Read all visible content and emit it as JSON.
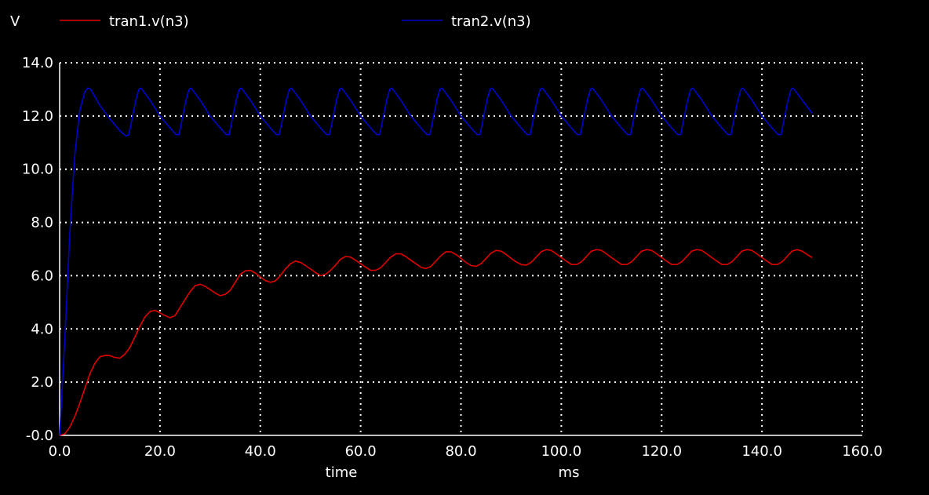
{
  "chart_data": {
    "type": "line",
    "ylabel": "V",
    "xlabel": "time",
    "xunit": "ms",
    "xlim": [
      0,
      160
    ],
    "ylim": [
      0,
      14
    ],
    "xticks": [
      "0.0",
      "20.0",
      "40.0",
      "60.0",
      "80.0",
      "100.0",
      "120.0",
      "140.0",
      "160.0"
    ],
    "yticks": [
      "-0.0",
      "2.0",
      "4.0",
      "6.0",
      "8.0",
      "10.0",
      "12.0",
      "14.0"
    ],
    "grid": true,
    "legend_position": "top",
    "series": [
      {
        "name": "tran1.v(n3)",
        "color": "#e00000",
        "x": [
          0,
          1,
          2,
          3,
          4,
          5,
          6,
          7,
          8,
          9,
          10,
          11,
          12,
          13,
          14,
          15,
          16,
          17,
          18,
          19,
          20,
          21,
          22,
          23,
          24,
          25,
          26,
          27,
          28,
          29,
          30,
          31,
          32,
          33,
          34,
          35,
          36,
          37,
          38,
          39,
          40,
          41,
          42,
          43,
          44,
          45,
          46,
          47,
          48,
          49,
          50,
          51,
          52,
          53,
          54,
          55,
          56,
          57,
          58,
          59,
          60,
          61,
          62,
          63,
          64,
          65,
          66,
          67,
          68,
          69,
          70,
          71,
          72,
          73,
          74,
          75,
          76,
          77,
          78,
          79,
          80,
          81,
          82,
          83,
          84,
          85,
          86,
          87,
          88,
          89,
          90,
          91,
          92,
          93,
          94,
          95,
          96,
          97,
          98,
          99,
          100,
          101,
          102,
          103,
          104,
          105,
          106,
          107,
          108,
          109,
          110,
          111,
          112,
          113,
          114,
          115,
          116,
          117,
          118,
          119,
          120,
          121,
          122,
          123,
          124,
          125,
          126,
          127,
          128,
          129,
          130,
          131,
          132,
          133,
          134,
          135,
          136,
          137,
          138,
          139,
          140,
          141,
          142,
          143,
          144,
          145,
          146,
          147,
          148,
          149,
          150
        ],
        "values": [
          0,
          0.05,
          0.3,
          0.7,
          1.2,
          1.75,
          2.3,
          2.7,
          2.95,
          3.0,
          3.0,
          2.93,
          2.9,
          3.05,
          3.3,
          3.7,
          4.1,
          4.45,
          4.65,
          4.7,
          4.6,
          4.5,
          4.42,
          4.5,
          4.8,
          5.1,
          5.4,
          5.62,
          5.68,
          5.6,
          5.48,
          5.35,
          5.25,
          5.3,
          5.45,
          5.75,
          6.05,
          6.18,
          6.2,
          6.1,
          5.95,
          5.82,
          5.75,
          5.8,
          6.0,
          6.25,
          6.45,
          6.55,
          6.5,
          6.38,
          6.25,
          6.12,
          6.0,
          6.05,
          6.2,
          6.4,
          6.62,
          6.72,
          6.7,
          6.58,
          6.45,
          6.32,
          6.2,
          6.2,
          6.3,
          6.5,
          6.7,
          6.82,
          6.82,
          6.72,
          6.58,
          6.45,
          6.32,
          6.27,
          6.35,
          6.55,
          6.75,
          6.9,
          6.9,
          6.8,
          6.65,
          6.5,
          6.38,
          6.35,
          6.45,
          6.65,
          6.85,
          6.95,
          6.92,
          6.8,
          6.65,
          6.52,
          6.42,
          6.4,
          6.5,
          6.7,
          6.9,
          6.98,
          6.95,
          6.82,
          6.68,
          6.55,
          6.42,
          6.42,
          6.52,
          6.72,
          6.92,
          6.98,
          6.95,
          6.82,
          6.68,
          6.55,
          6.42,
          6.42,
          6.52,
          6.72,
          6.92,
          6.98,
          6.95,
          6.82,
          6.68,
          6.55,
          6.42,
          6.42,
          6.52,
          6.72,
          6.92,
          6.98,
          6.95,
          6.82,
          6.68,
          6.55,
          6.42,
          6.42,
          6.52,
          6.72,
          6.92,
          6.98,
          6.95,
          6.82,
          6.68,
          6.55,
          6.42,
          6.42,
          6.52,
          6.72,
          6.92,
          6.98,
          6.92,
          6.8,
          6.68
        ]
      },
      {
        "name": "tran2.v(n3)",
        "color": "#0000d0",
        "x": [
          0,
          1,
          2,
          3,
          4,
          5,
          5.6,
          6.2,
          8,
          10,
          12,
          13.2,
          13.8,
          15.2,
          15.8,
          16.2,
          18,
          20,
          22,
          23.2,
          23.8,
          25.2,
          25.8,
          26.2,
          28,
          30,
          32,
          33.2,
          33.8,
          35.2,
          35.8,
          36.2,
          38,
          40,
          42,
          43.2,
          43.8,
          45.2,
          45.8,
          46.2,
          48,
          50,
          52,
          53.2,
          53.8,
          55.2,
          55.8,
          56.2,
          58,
          60,
          62,
          63.2,
          63.8,
          65.2,
          65.8,
          66.2,
          68,
          70,
          72,
          73.2,
          73.8,
          75.2,
          75.8,
          76.2,
          78,
          80,
          82,
          83.2,
          83.8,
          85.2,
          85.8,
          86.2,
          88,
          90,
          92,
          93.2,
          93.8,
          95.2,
          95.8,
          96.2,
          98,
          100,
          102,
          103.2,
          103.8,
          105.2,
          105.8,
          106.2,
          108,
          110,
          112,
          113.2,
          113.8,
          115.2,
          115.8,
          116.2,
          118,
          120,
          122,
          123.2,
          123.8,
          125.2,
          125.8,
          126.2,
          128,
          130,
          132,
          133.2,
          133.8,
          135.2,
          135.8,
          136.2,
          138,
          140,
          142,
          143.2,
          143.8,
          145.2,
          145.8,
          146.2,
          148,
          150
        ],
        "values": [
          0,
          3.5,
          7.5,
          10.5,
          12.2,
          12.9,
          13.05,
          13.0,
          12.4,
          11.9,
          11.45,
          11.25,
          11.3,
          12.6,
          13.0,
          13.05,
          12.6,
          12.0,
          11.55,
          11.3,
          11.3,
          12.6,
          13.0,
          13.05,
          12.6,
          12.0,
          11.55,
          11.3,
          11.3,
          12.6,
          13.0,
          13.05,
          12.6,
          12.0,
          11.55,
          11.3,
          11.3,
          12.6,
          13.0,
          13.05,
          12.6,
          12.0,
          11.55,
          11.3,
          11.3,
          12.6,
          13.0,
          13.05,
          12.6,
          12.0,
          11.55,
          11.3,
          11.3,
          12.6,
          13.0,
          13.05,
          12.6,
          12.0,
          11.55,
          11.3,
          11.3,
          12.6,
          13.0,
          13.05,
          12.6,
          12.0,
          11.55,
          11.3,
          11.3,
          12.6,
          13.0,
          13.05,
          12.6,
          12.0,
          11.55,
          11.3,
          11.3,
          12.6,
          13.0,
          13.05,
          12.6,
          12.0,
          11.55,
          11.3,
          11.3,
          12.6,
          13.0,
          13.05,
          12.6,
          12.0,
          11.55,
          11.3,
          11.3,
          12.6,
          13.0,
          13.05,
          12.6,
          12.0,
          11.55,
          11.3,
          11.3,
          12.6,
          13.0,
          13.05,
          12.6,
          12.0,
          11.55,
          11.3,
          11.3,
          12.6,
          13.0,
          13.05,
          12.6,
          12.0,
          11.55,
          11.3,
          11.3,
          12.6,
          13.0,
          13.05,
          12.6,
          12.1
        ]
      }
    ]
  }
}
